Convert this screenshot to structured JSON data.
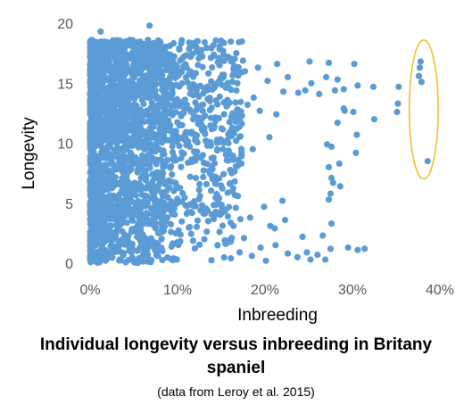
{
  "chart_data": {
    "type": "scatter",
    "title": "",
    "xlabel": "Inbreeding",
    "ylabel": "Longevity",
    "xlim": [
      0,
      40
    ],
    "ylim": [
      0,
      20
    ],
    "x_ticks": [
      "0%",
      "10%",
      "20%",
      "30%",
      "40%"
    ],
    "y_ticks": [
      "0",
      "5",
      "10",
      "15",
      "20"
    ],
    "x_tick_values": [
      0,
      10,
      20,
      30,
      40
    ],
    "y_tick_values": [
      0,
      5,
      10,
      15,
      20
    ],
    "grid": false,
    "legend": "none",
    "marker_color": "#5B9BD5",
    "highlight_color": "#F2C12E",
    "highlight": {
      "shape": "ellipse",
      "x_range": [
        36.5,
        39.8
      ],
      "y_range": [
        7.0,
        18.6
      ]
    },
    "cluster_note": "dense cloud of points for inbreeding 0-17%, longevity 0-19",
    "series": [
      {
        "points": [
          [
            6.8,
            19.8
          ],
          [
            1.2,
            19.3
          ],
          [
            4.6,
            18.6
          ],
          [
            10.2,
            17.9
          ],
          [
            13.1,
            18.4
          ],
          [
            11.5,
            17.2
          ],
          [
            14.8,
            16.5
          ],
          [
            16.3,
            16.9
          ],
          [
            17.7,
            16.0
          ],
          [
            19.2,
            16.3
          ],
          [
            21.4,
            16.6
          ],
          [
            20.3,
            15.2
          ],
          [
            22.6,
            15.5
          ],
          [
            23.8,
            14.2
          ],
          [
            25.1,
            16.8
          ],
          [
            26.2,
            14.1
          ],
          [
            27.3,
            16.7
          ],
          [
            28.3,
            15.3
          ],
          [
            29.0,
            14.5
          ],
          [
            30.2,
            16.6
          ],
          [
            30.6,
            14.8
          ],
          [
            32.4,
            14.7
          ],
          [
            32.5,
            12.0
          ],
          [
            29.1,
            12.7
          ],
          [
            28.0,
            14.4
          ],
          [
            27.0,
            15.5
          ],
          [
            25.3,
            15.0
          ],
          [
            24.6,
            14.4
          ],
          [
            22.1,
            14.3
          ],
          [
            21.3,
            12.4
          ],
          [
            18.7,
            13.8
          ],
          [
            19.4,
            12.7
          ],
          [
            17.1,
            12.0
          ],
          [
            18.0,
            13.2
          ],
          [
            15.3,
            13.4
          ],
          [
            14.2,
            11.4
          ],
          [
            12.6,
            12.1
          ],
          [
            13.7,
            13.5
          ],
          [
            11.4,
            9.7
          ],
          [
            12.9,
            9.0
          ],
          [
            15.2,
            9.5
          ],
          [
            16.7,
            10.2
          ],
          [
            13.9,
            8.1
          ],
          [
            12.1,
            7.1
          ],
          [
            14.4,
            6.6
          ],
          [
            16.2,
            7.5
          ],
          [
            17.3,
            8.3
          ],
          [
            18.6,
            9.5
          ],
          [
            20.5,
            10.5
          ],
          [
            16.9,
            5.6
          ],
          [
            15.1,
            4.4
          ],
          [
            13.5,
            3.5
          ],
          [
            14.8,
            2.6
          ],
          [
            16.4,
            3.1
          ],
          [
            17.6,
            2.1
          ],
          [
            18.3,
            3.8
          ],
          [
            19.9,
            4.7
          ],
          [
            20.6,
            3.1
          ],
          [
            21.1,
            2.9
          ],
          [
            22.3,
            3.6
          ],
          [
            22.0,
            5.2
          ],
          [
            21.2,
            1.5
          ],
          [
            19.5,
            1.3
          ],
          [
            18.5,
            0.6
          ],
          [
            17.1,
            0.9
          ],
          [
            16.1,
            0.4
          ],
          [
            20.1,
            0.2
          ],
          [
            22.6,
            0.8
          ],
          [
            23.7,
            0.5
          ],
          [
            24.8,
            0.9
          ],
          [
            25.2,
            0.3
          ],
          [
            26.0,
            0.7
          ],
          [
            26.9,
            0.3
          ],
          [
            24.3,
            2.2
          ],
          [
            27.5,
            1.2
          ],
          [
            29.5,
            1.3
          ],
          [
            30.6,
            1.1
          ],
          [
            31.4,
            1.2
          ],
          [
            26.6,
            2.3
          ],
          [
            27.6,
            3.3
          ],
          [
            27.3,
            5.3
          ],
          [
            27.5,
            5.8
          ],
          [
            27.8,
            6.7
          ],
          [
            28.6,
            6.4
          ],
          [
            27.6,
            7.1
          ],
          [
            27.3,
            8.0
          ],
          [
            28.5,
            8.3
          ],
          [
            27.6,
            9.7
          ],
          [
            27.1,
            9.9
          ],
          [
            30.4,
            9.2
          ],
          [
            30.5,
            10.7
          ],
          [
            28.3,
            11.7
          ],
          [
            30.1,
            12.6
          ],
          [
            29.0,
            12.9
          ],
          [
            35.1,
            12.6
          ],
          [
            35.2,
            13.3
          ],
          [
            35.3,
            14.7
          ],
          [
            37.8,
            16.8
          ],
          [
            37.7,
            16.3
          ],
          [
            37.6,
            15.6
          ],
          [
            37.9,
            15.1
          ],
          [
            38.6,
            8.5
          ]
        ]
      }
    ]
  },
  "caption": {
    "title_line1": "Individual longevity versus inbreeding in Britany",
    "title_line2": "spaniel",
    "source": "(data from Leroy et al. 2015)"
  }
}
